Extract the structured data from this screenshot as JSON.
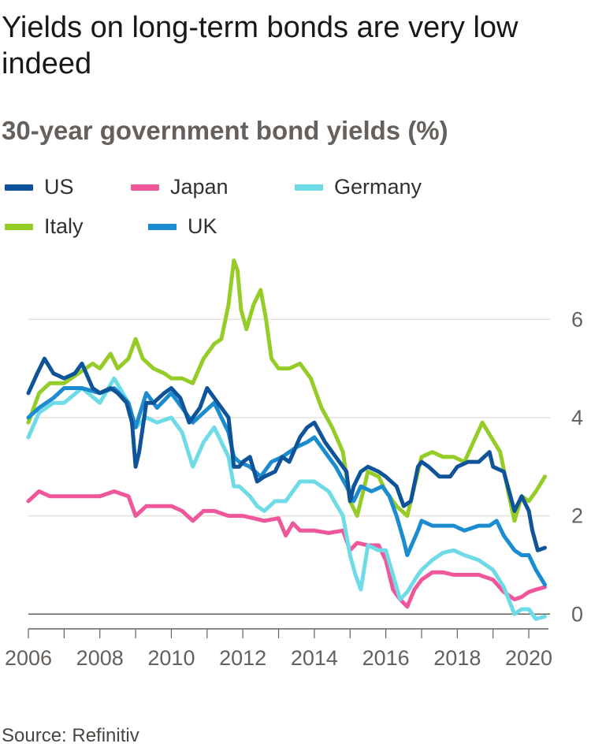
{
  "title": "Yields on long-term bonds are very low indeed",
  "subtitle": "30-year government bond yields (%)",
  "source": "Source: Refinitiv",
  "chart_data": {
    "type": "line",
    "title": "Yields on long-term bonds are very low indeed",
    "subtitle": "30-year government bond yields (%)",
    "xlabel": "",
    "ylabel": "",
    "xlim": [
      2006,
      2020.55
    ],
    "ylim": [
      -0.3,
      7.4
    ],
    "x_ticks": [
      "2006",
      "2008",
      "2010",
      "2012",
      "2014",
      "2016",
      "2018",
      "2020"
    ],
    "y_ticks": [
      "0",
      "2",
      "4",
      "6"
    ],
    "grid": "horizontal",
    "y_axis_position": "right",
    "legend_position": "top",
    "series": [
      {
        "name": "US",
        "color": "#0f5499",
        "x": [
          2006.0,
          2006.25,
          2006.45,
          2006.7,
          2007.0,
          2007.3,
          2007.5,
          2007.8,
          2008.0,
          2008.3,
          2008.5,
          2008.75,
          2008.9,
          2009.0,
          2009.1,
          2009.3,
          2009.5,
          2009.8,
          2010.0,
          2010.25,
          2010.5,
          2010.8,
          2011.0,
          2011.3,
          2011.6,
          2011.75,
          2011.9,
          2012.0,
          2012.2,
          2012.4,
          2012.6,
          2012.9,
          2013.1,
          2013.3,
          2013.6,
          2013.8,
          2014.0,
          2014.3,
          2014.6,
          2014.9,
          2015.0,
          2015.1,
          2015.3,
          2015.5,
          2015.8,
          2016.0,
          2016.3,
          2016.5,
          2016.7,
          2016.9,
          2017.0,
          2017.2,
          2017.5,
          2017.8,
          2018.0,
          2018.3,
          2018.6,
          2018.9,
          2019.0,
          2019.3,
          2019.6,
          2019.8,
          2020.0,
          2020.1,
          2020.25,
          2020.45
        ],
        "values": [
          4.5,
          4.9,
          5.2,
          4.9,
          4.8,
          4.9,
          5.1,
          4.6,
          4.5,
          4.6,
          4.5,
          4.3,
          3.9,
          3.0,
          3.3,
          4.3,
          4.3,
          4.5,
          4.6,
          4.4,
          3.9,
          4.2,
          4.6,
          4.3,
          4.0,
          3.0,
          3.0,
          3.1,
          3.2,
          2.7,
          2.8,
          2.9,
          3.2,
          3.1,
          3.6,
          3.8,
          3.9,
          3.5,
          3.2,
          2.9,
          2.3,
          2.6,
          2.9,
          3.0,
          2.9,
          2.8,
          2.6,
          2.2,
          2.3,
          3.0,
          3.1,
          3.0,
          2.8,
          2.8,
          3.0,
          3.1,
          3.1,
          3.3,
          3.0,
          2.9,
          2.1,
          2.4,
          2.1,
          1.7,
          1.3,
          1.35
        ]
      },
      {
        "name": "Japan",
        "color": "#f0569a",
        "x": [
          2006.0,
          2006.3,
          2006.6,
          2007.0,
          2007.5,
          2008.0,
          2008.4,
          2008.8,
          2009.0,
          2009.3,
          2009.6,
          2010.0,
          2010.3,
          2010.6,
          2010.9,
          2011.2,
          2011.6,
          2012.0,
          2012.3,
          2012.6,
          2013.0,
          2013.2,
          2013.4,
          2013.6,
          2014.0,
          2014.4,
          2014.8,
          2015.0,
          2015.2,
          2015.5,
          2015.8,
          2016.0,
          2016.2,
          2016.4,
          2016.6,
          2016.8,
          2017.0,
          2017.3,
          2017.6,
          2017.9,
          2018.2,
          2018.6,
          2019.0,
          2019.3,
          2019.6,
          2019.8,
          2020.0,
          2020.2,
          2020.45
        ],
        "values": [
          2.3,
          2.5,
          2.4,
          2.4,
          2.4,
          2.4,
          2.5,
          2.4,
          2.0,
          2.2,
          2.2,
          2.2,
          2.1,
          1.9,
          2.1,
          2.1,
          2.0,
          2.0,
          1.95,
          1.9,
          1.95,
          1.6,
          1.85,
          1.7,
          1.7,
          1.65,
          1.7,
          1.3,
          1.45,
          1.4,
          1.4,
          1.1,
          0.5,
          0.3,
          0.15,
          0.5,
          0.7,
          0.85,
          0.85,
          0.8,
          0.8,
          0.8,
          0.7,
          0.45,
          0.3,
          0.35,
          0.45,
          0.5,
          0.55
        ]
      },
      {
        "name": "Germany",
        "color": "#6fdbe6",
        "x": [
          2006.0,
          2006.3,
          2006.7,
          2007.0,
          2007.5,
          2008.0,
          2008.4,
          2008.8,
          2009.0,
          2009.3,
          2009.6,
          2010.0,
          2010.3,
          2010.6,
          2010.9,
          2011.2,
          2011.6,
          2011.75,
          2011.9,
          2012.2,
          2012.4,
          2012.6,
          2012.9,
          2013.2,
          2013.6,
          2014.0,
          2014.4,
          2014.8,
          2015.0,
          2015.15,
          2015.3,
          2015.5,
          2015.8,
          2016.0,
          2016.2,
          2016.4,
          2016.6,
          2016.9,
          2017.0,
          2017.3,
          2017.6,
          2017.9,
          2018.2,
          2018.6,
          2019.0,
          2019.3,
          2019.6,
          2019.8,
          2020.0,
          2020.2,
          2020.45
        ],
        "values": [
          3.6,
          4.1,
          4.3,
          4.3,
          4.6,
          4.3,
          4.8,
          4.3,
          3.8,
          4.0,
          3.9,
          4.0,
          3.7,
          3.0,
          3.5,
          3.8,
          3.2,
          2.6,
          2.6,
          2.4,
          2.2,
          2.1,
          2.3,
          2.3,
          2.7,
          2.7,
          2.5,
          2.0,
          1.2,
          0.8,
          0.5,
          1.4,
          1.3,
          1.3,
          0.8,
          0.3,
          0.45,
          0.8,
          0.9,
          1.1,
          1.25,
          1.3,
          1.2,
          1.1,
          0.9,
          0.55,
          0.0,
          0.1,
          0.1,
          -0.1,
          -0.05
        ]
      },
      {
        "name": "Italy",
        "color": "#96cc28",
        "x": [
          2006.0,
          2006.3,
          2006.6,
          2007.0,
          2007.4,
          2007.8,
          2008.0,
          2008.3,
          2008.5,
          2008.8,
          2009.0,
          2009.2,
          2009.5,
          2009.8,
          2010.0,
          2010.3,
          2010.6,
          2010.9,
          2011.2,
          2011.4,
          2011.6,
          2011.75,
          2011.85,
          2011.95,
          2012.1,
          2012.3,
          2012.5,
          2012.65,
          2012.8,
          2013.0,
          2013.3,
          2013.6,
          2013.9,
          2014.2,
          2014.5,
          2014.8,
          2015.0,
          2015.2,
          2015.5,
          2015.8,
          2016.0,
          2016.3,
          2016.6,
          2016.9,
          2017.0,
          2017.3,
          2017.6,
          2017.9,
          2018.2,
          2018.45,
          2018.7,
          2018.95,
          2019.2,
          2019.45,
          2019.6,
          2019.8,
          2020.0,
          2020.2,
          2020.45
        ],
        "values": [
          3.9,
          4.5,
          4.7,
          4.7,
          4.9,
          5.1,
          5.0,
          5.3,
          5.0,
          5.2,
          5.6,
          5.2,
          5.0,
          4.9,
          4.8,
          4.8,
          4.7,
          5.2,
          5.5,
          5.6,
          6.3,
          7.2,
          7.0,
          6.2,
          5.8,
          6.3,
          6.6,
          6.0,
          5.2,
          5.0,
          5.0,
          5.1,
          4.8,
          4.2,
          3.8,
          3.3,
          2.3,
          2.0,
          2.9,
          2.8,
          2.5,
          2.2,
          2.0,
          2.9,
          3.2,
          3.3,
          3.2,
          3.2,
          3.1,
          3.5,
          3.9,
          3.6,
          3.3,
          2.4,
          1.9,
          2.4,
          2.3,
          2.5,
          2.8
        ]
      },
      {
        "name": "UK",
        "color": "#1a8ccf",
        "x": [
          2006.0,
          2006.3,
          2006.7,
          2007.0,
          2007.5,
          2008.0,
          2008.4,
          2008.8,
          2009.0,
          2009.3,
          2009.6,
          2010.0,
          2010.3,
          2010.6,
          2010.9,
          2011.2,
          2011.6,
          2011.75,
          2011.9,
          2012.2,
          2012.5,
          2012.8,
          2013.1,
          2013.5,
          2013.8,
          2014.0,
          2014.3,
          2014.6,
          2014.9,
          2015.1,
          2015.3,
          2015.6,
          2015.9,
          2016.1,
          2016.3,
          2016.5,
          2016.6,
          2016.9,
          2017.0,
          2017.3,
          2017.6,
          2017.9,
          2018.2,
          2018.6,
          2018.9,
          2019.1,
          2019.3,
          2019.6,
          2019.8,
          2020.0,
          2020.2,
          2020.45
        ],
        "values": [
          4.0,
          4.2,
          4.4,
          4.6,
          4.6,
          4.5,
          4.6,
          4.3,
          3.8,
          4.5,
          4.2,
          4.5,
          4.2,
          3.9,
          4.1,
          4.3,
          3.7,
          3.2,
          3.1,
          3.0,
          2.8,
          3.1,
          3.2,
          3.4,
          3.5,
          3.6,
          3.3,
          3.0,
          2.6,
          2.3,
          2.6,
          2.5,
          2.6,
          2.4,
          2.0,
          1.5,
          1.2,
          1.7,
          1.9,
          1.8,
          1.8,
          1.8,
          1.7,
          1.8,
          1.8,
          1.9,
          1.6,
          1.3,
          1.2,
          1.2,
          0.9,
          0.6
        ]
      }
    ]
  }
}
